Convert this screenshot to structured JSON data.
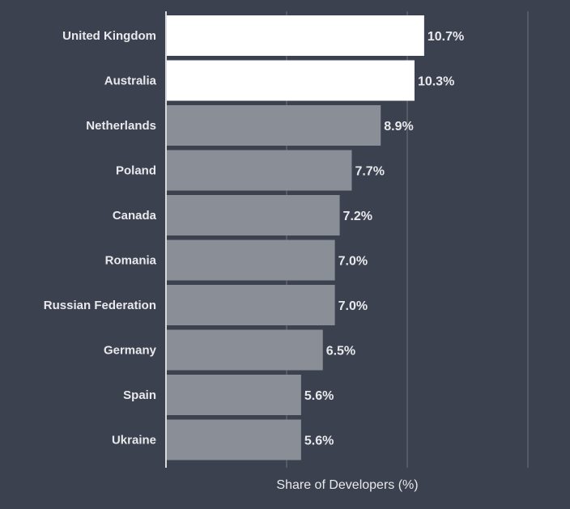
{
  "chart_data": {
    "type": "bar",
    "orientation": "horizontal",
    "categories": [
      "United Kingdom",
      "Australia",
      "Netherlands",
      "Poland",
      "Canada",
      "Romania",
      "Russian Federation",
      "Germany",
      "Spain",
      "Ukraine"
    ],
    "values": [
      10.7,
      10.3,
      8.9,
      7.7,
      7.2,
      7.0,
      7.0,
      6.5,
      5.6,
      5.6
    ],
    "value_labels": [
      "10.7%",
      "10.3%",
      "8.9%",
      "7.7%",
      "7.2%",
      "7.0%",
      "7.0%",
      "6.5%",
      "5.6%",
      "5.6%"
    ],
    "highlighted": [
      true,
      true,
      false,
      false,
      false,
      false,
      false,
      false,
      false,
      false
    ],
    "xlabel": "Share of Developers (%)",
    "xlim": [
      0,
      15
    ],
    "x_gridlines": [
      5,
      10,
      15
    ],
    "grid": true,
    "colors": {
      "background": "#3c414f",
      "bar": "#8a8e96",
      "bar_highlight": "#ffffff",
      "text": "#e8e9ec",
      "grid": "#70747e",
      "axis": "#d9dadd"
    }
  }
}
